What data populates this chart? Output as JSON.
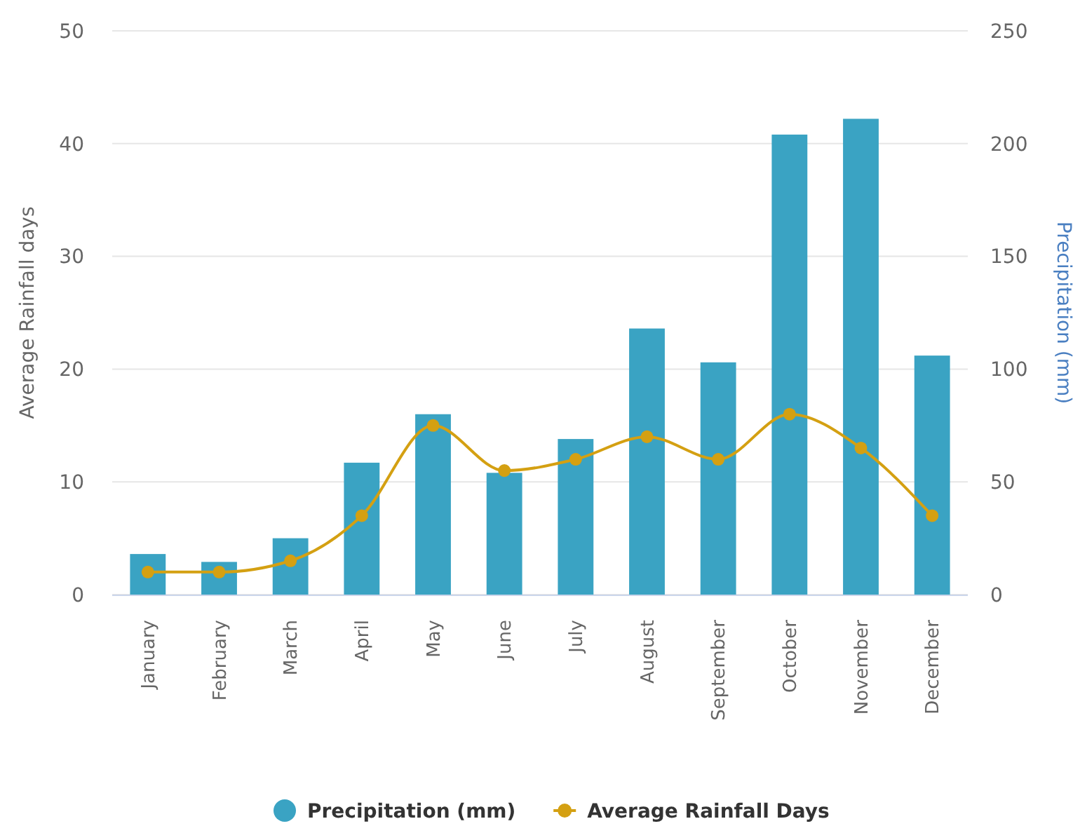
{
  "chart_data": {
    "type": "bar",
    "categories": [
      "January",
      "February",
      "March",
      "April",
      "May",
      "June",
      "July",
      "August",
      "September",
      "October",
      "November",
      "December"
    ],
    "ylabel": "Average Rainfall days",
    "y2label": "Precipitation (mm)",
    "ylim": [
      0,
      50
    ],
    "yticks": [
      0,
      10,
      20,
      30,
      40,
      50
    ],
    "y2lim": [
      0,
      250
    ],
    "y2ticks": [
      0,
      50,
      100,
      150,
      200,
      250
    ],
    "grid": "y",
    "legend": "bottom",
    "marker": "circle",
    "series": [
      {
        "name": "Precipitation (mm)",
        "axis": "y2",
        "color": "#3aa3c3",
        "values": [
          18,
          14.5,
          25,
          58.5,
          80,
          54,
          69,
          118,
          103,
          204,
          211,
          106
        ]
      },
      {
        "name": "Average Rainfall Days",
        "type": "line",
        "axis": "y",
        "color": "#d4a012",
        "values": [
          2,
          2,
          3,
          7,
          15,
          11,
          12,
          14,
          12,
          16,
          13,
          7
        ]
      }
    ]
  }
}
